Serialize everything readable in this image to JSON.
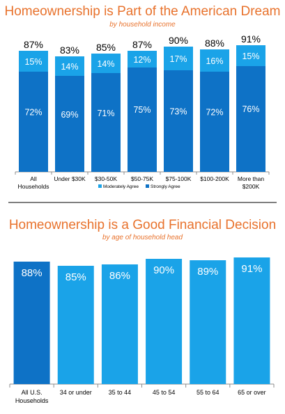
{
  "chart_data": [
    {
      "type": "bar",
      "stacked": true,
      "title": "Homeownership is Part of the American Dream",
      "subtitle": "by household income",
      "categories": [
        "All Households",
        "Under $30K",
        "$30-50K",
        "$50-75K",
        "$75-100K",
        "$100-200K",
        "More than $200K"
      ],
      "category_lines": [
        [
          "All",
          "Households"
        ],
        [
          "Under $30K"
        ],
        [
          "$30-50K"
        ],
        [
          "$50-75K"
        ],
        [
          "$75-100K"
        ],
        [
          "$100-200K"
        ],
        [
          "More than",
          "$200K"
        ]
      ],
      "series": [
        {
          "name": "Strongly Agree",
          "values": [
            72,
            69,
            71,
            75,
            73,
            72,
            76
          ],
          "labels": [
            "72%",
            "69%",
            "71%",
            "75%",
            "73%",
            "72%",
            "76%"
          ],
          "color": "#0e72c6"
        },
        {
          "name": "Moderately Agree",
          "values": [
            15,
            14,
            14,
            12,
            17,
            16,
            15
          ],
          "labels": [
            "15%",
            "14%",
            "14%",
            "12%",
            "17%",
            "16%",
            "15%"
          ],
          "color": "#1aa3e8"
        }
      ],
      "totals": [
        "87%",
        "83%",
        "85%",
        "87%",
        "90%",
        "88%",
        "91%"
      ],
      "legend": {
        "position": "bottom",
        "items": [
          "Moderately Agree",
          "Strongly Agree"
        ]
      },
      "grid": false
    },
    {
      "type": "bar",
      "title": "Homeownership is a Good Financial Decision",
      "subtitle": "by age of household head",
      "categories": [
        "All U.S. Households",
        "34 or under",
        "35 to 44",
        "45 to 54",
        "55 to 64",
        "65 or over"
      ],
      "category_lines": [
        [
          "All U.S.",
          "Households"
        ],
        [
          "34 or under"
        ],
        [
          "35 to 44"
        ],
        [
          "45 to 54"
        ],
        [
          "55 to 64"
        ],
        [
          "65 or over"
        ]
      ],
      "values": [
        88,
        85,
        86,
        90,
        89,
        91
      ],
      "labels": [
        "88%",
        "85%",
        "86%",
        "90%",
        "89%",
        "91%"
      ],
      "colors": [
        "#0e72c6",
        "#1aa3e8",
        "#1aa3e8",
        "#1aa3e8",
        "#1aa3e8",
        "#1aa3e8"
      ],
      "legend": null,
      "grid": false
    }
  ]
}
